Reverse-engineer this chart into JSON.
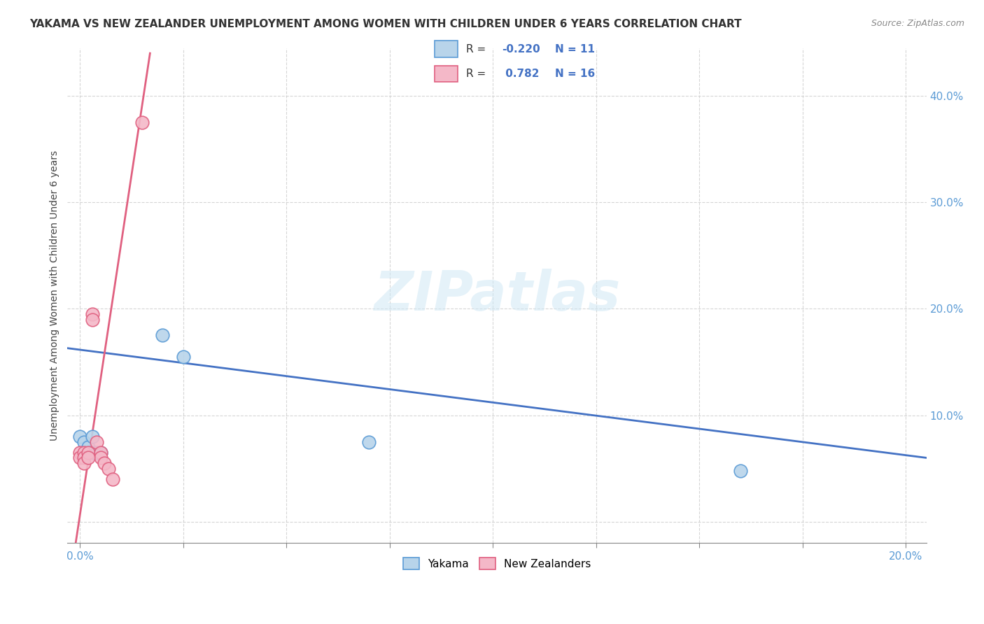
{
  "title": "YAKAMA VS NEW ZEALANDER UNEMPLOYMENT AMONG WOMEN WITH CHILDREN UNDER 6 YEARS CORRELATION CHART",
  "source": "Source: ZipAtlas.com",
  "ylabel": "Unemployment Among Women with Children Under 6 years",
  "xlim": [
    -0.003,
    0.205
  ],
  "ylim": [
    -0.02,
    0.445
  ],
  "xticks": [
    0.0,
    0.025,
    0.05,
    0.075,
    0.1,
    0.125,
    0.15,
    0.175,
    0.2
  ],
  "xtick_labels": [
    "0.0%",
    "",
    "",
    "",
    "",
    "",
    "",
    "",
    "20.0%"
  ],
  "yticks": [
    0.0,
    0.1,
    0.2,
    0.3,
    0.4
  ],
  "ytick_labels": [
    "",
    "10.0%",
    "20.0%",
    "30.0%",
    "40.0%"
  ],
  "watermark": "ZIPatlas",
  "series": [
    {
      "name": "Yakama",
      "color": "#b8d4ea",
      "border_color": "#5b9bd5",
      "R": -0.22,
      "N": 11,
      "line_color": "#4472c4",
      "line_style": "solid",
      "points_x": [
        0.0,
        0.001,
        0.002,
        0.003,
        0.004,
        0.005,
        0.02,
        0.025,
        0.07,
        0.16,
        0.003
      ],
      "points_y": [
        0.08,
        0.075,
        0.07,
        0.065,
        0.065,
        0.065,
        0.175,
        0.155,
        0.075,
        0.048,
        0.08
      ],
      "trend_x": [
        -0.003,
        0.205
      ],
      "trend_y": [
        0.163,
        0.06
      ]
    },
    {
      "name": "New Zealanders",
      "color": "#f4b8c8",
      "border_color": "#e06080",
      "R": 0.782,
      "N": 16,
      "line_color": "#e06080",
      "line_style": "solid",
      "points_x": [
        0.0,
        0.0,
        0.001,
        0.001,
        0.001,
        0.002,
        0.003,
        0.003,
        0.004,
        0.005,
        0.005,
        0.006,
        0.007,
        0.008,
        0.015,
        0.002
      ],
      "points_y": [
        0.065,
        0.06,
        0.065,
        0.06,
        0.055,
        0.065,
        0.195,
        0.19,
        0.075,
        0.065,
        0.06,
        0.055,
        0.05,
        0.04,
        0.375,
        0.06
      ],
      "trend_x": [
        -0.001,
        0.017
      ],
      "trend_y": [
        -0.02,
        0.44
      ]
    }
  ],
  "background_color": "#ffffff",
  "grid_color": "#cccccc",
  "title_fontsize": 11,
  "axis_fontsize": 10,
  "tick_fontsize": 11,
  "tick_color": "#5b9bd5"
}
